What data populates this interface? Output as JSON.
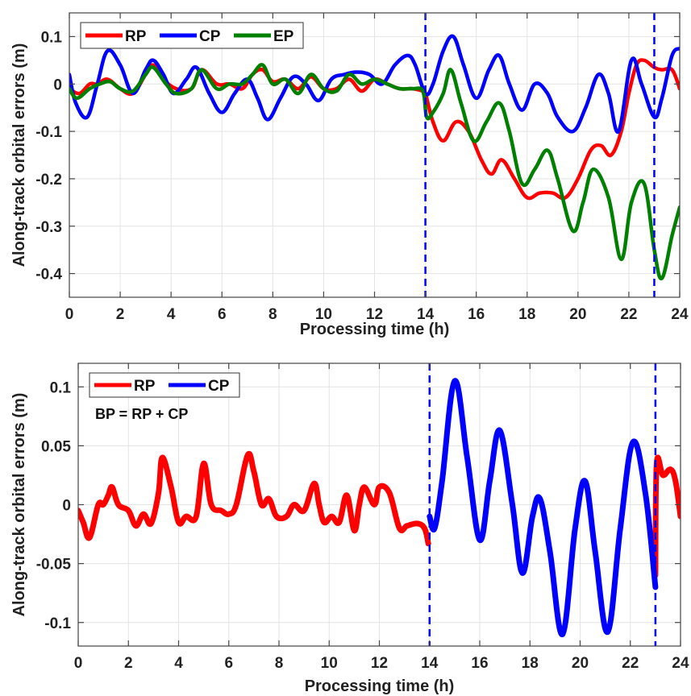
{
  "chart_data": [
    {
      "type": "line",
      "panel": "top",
      "title": "",
      "xlabel": "Processing time (h)",
      "ylabel": "Along-track orbital errors (m)",
      "xlim": [
        0,
        24
      ],
      "ylim": [
        -0.45,
        0.15
      ],
      "xticks": [
        0,
        2,
        4,
        6,
        8,
        10,
        12,
        14,
        16,
        18,
        20,
        22,
        24
      ],
      "xtick_labels": [
        "0",
        "2",
        "4",
        "6",
        "8",
        "10",
        "12",
        "14",
        "16",
        "18",
        "20",
        "22",
        "24"
      ],
      "yticks": [
        0.1,
        0,
        -0.1,
        -0.2,
        -0.3,
        -0.4
      ],
      "ytick_labels": [
        "0.1",
        "0",
        "-0.1",
        "-0.2",
        "-0.3",
        "-0.4"
      ],
      "grid": true,
      "legend": {
        "placement": "top-left",
        "entries": [
          "RP",
          "CP",
          "EP"
        ]
      },
      "vlines": [
        {
          "x": 14,
          "style": "dashed",
          "color": "#0000ff"
        },
        {
          "x": 23,
          "style": "dashed",
          "color": "#0000ff"
        }
      ],
      "series": [
        {
          "name": "RP",
          "color": "#ff0000",
          "x": [
            0,
            0.4,
            0.8,
            1.1,
            1.5,
            2.0,
            2.5,
            3.0,
            3.3,
            3.7,
            4.2,
            4.8,
            5.2,
            5.8,
            6.3,
            6.8,
            7.2,
            7.6,
            8.0,
            8.5,
            9.0,
            9.5,
            10.0,
            10.5,
            11.0,
            11.5,
            12.0,
            12.5,
            13.0,
            13.5,
            13.9,
            14.0,
            14.3,
            14.7,
            15.2,
            15.7,
            16.2,
            16.6,
            17.0,
            17.5,
            18.0,
            18.5,
            19.0,
            19.5,
            20.0,
            20.5,
            20.9,
            21.3,
            21.7,
            22.0,
            22.3,
            22.6,
            23.0,
            23.3,
            23.7,
            24.0
          ],
          "y": [
            -0.01,
            -0.02,
            0.0,
            0.0,
            0.01,
            -0.01,
            -0.02,
            0.02,
            0.04,
            0.01,
            -0.01,
            -0.01,
            0.03,
            0.0,
            0.0,
            -0.01,
            0.02,
            0.03,
            0.005,
            0.01,
            -0.01,
            0.015,
            -0.01,
            -0.01,
            0.01,
            -0.015,
            0.01,
            0.0,
            -0.01,
            -0.01,
            -0.015,
            -0.02,
            -0.08,
            -0.12,
            -0.08,
            -0.1,
            -0.16,
            -0.19,
            -0.16,
            -0.2,
            -0.24,
            -0.23,
            -0.23,
            -0.24,
            -0.2,
            -0.14,
            -0.13,
            -0.15,
            -0.1,
            -0.02,
            0.04,
            0.05,
            0.035,
            0.03,
            0.03,
            -0.01
          ]
        },
        {
          "name": "CP",
          "color": "#0000ff",
          "x": [
            0,
            0.25,
            0.7,
            1.1,
            1.5,
            2.0,
            2.5,
            3.0,
            3.3,
            3.7,
            4.1,
            4.6,
            5.0,
            5.5,
            6.0,
            6.5,
            7.0,
            7.4,
            7.8,
            8.3,
            8.8,
            9.3,
            9.8,
            10.3,
            10.8,
            11.3,
            11.8,
            12.3,
            12.8,
            13.3,
            13.6,
            14.0,
            14.3,
            14.7,
            15.1,
            15.5,
            16.0,
            16.5,
            16.9,
            17.3,
            17.8,
            18.3,
            18.8,
            19.2,
            19.8,
            20.3,
            20.8,
            21.2,
            21.6,
            22.1,
            22.5,
            23.0,
            23.3,
            23.7,
            24.0
          ],
          "y": [
            0.02,
            -0.04,
            -0.07,
            0.0,
            0.07,
            0.04,
            -0.02,
            0.03,
            0.05,
            0.02,
            -0.02,
            0.01,
            0.035,
            -0.02,
            -0.06,
            -0.02,
            0.01,
            -0.03,
            -0.075,
            -0.03,
            0.015,
            0.0,
            -0.035,
            0.01,
            0.02,
            0.025,
            0.02,
            0.0,
            0.04,
            0.06,
            0.04,
            -0.02,
            0.0,
            0.07,
            0.1,
            0.04,
            -0.03,
            0.03,
            0.06,
            0.0,
            -0.055,
            0.0,
            -0.02,
            -0.07,
            -0.1,
            -0.05,
            0.02,
            -0.02,
            -0.1,
            0.05,
            0.0,
            -0.07,
            -0.03,
            0.06,
            0.075
          ]
        },
        {
          "name": "EP",
          "color": "#008000",
          "x": [
            0,
            0.3,
            0.8,
            1.2,
            1.6,
            2.0,
            2.5,
            3.0,
            3.3,
            3.8,
            4.2,
            4.8,
            5.2,
            5.8,
            6.3,
            6.8,
            7.2,
            7.6,
            8.0,
            8.5,
            9.0,
            9.5,
            10.0,
            10.5,
            11.0,
            11.5,
            12.0,
            12.5,
            13.0,
            13.5,
            13.9,
            14.05,
            14.3,
            14.7,
            15.0,
            15.4,
            15.9,
            16.4,
            16.9,
            17.3,
            17.8,
            18.3,
            18.8,
            19.2,
            19.8,
            20.2,
            20.6,
            21.2,
            21.7,
            22.1,
            22.6,
            23.0,
            23.3,
            23.7,
            24.0
          ],
          "y": [
            -0.01,
            -0.03,
            -0.01,
            0.0,
            0.005,
            -0.01,
            -0.015,
            0.02,
            0.035,
            0.0,
            -0.02,
            -0.01,
            0.03,
            -0.01,
            0.0,
            0.0,
            0.02,
            0.04,
            0.0,
            0.01,
            -0.02,
            0.02,
            -0.01,
            -0.015,
            0.02,
            0.0,
            0.01,
            0.0,
            -0.01,
            -0.01,
            -0.015,
            -0.07,
            -0.06,
            -0.02,
            0.03,
            -0.04,
            -0.12,
            -0.08,
            -0.04,
            -0.1,
            -0.21,
            -0.18,
            -0.14,
            -0.2,
            -0.31,
            -0.25,
            -0.18,
            -0.24,
            -0.37,
            -0.25,
            -0.21,
            -0.35,
            -0.41,
            -0.32,
            -0.26
          ]
        }
      ]
    },
    {
      "type": "line",
      "panel": "bottom",
      "title": "",
      "xlabel": "Processing time (h)",
      "ylabel": "Along-track orbital errors (m)",
      "xlim": [
        0,
        24
      ],
      "ylim": [
        -0.12,
        0.12
      ],
      "xticks": [
        0,
        2,
        4,
        6,
        8,
        10,
        12,
        14,
        16,
        18,
        20,
        22,
        24
      ],
      "xtick_labels": [
        "0",
        "2",
        "4",
        "6",
        "8",
        "10",
        "12",
        "14",
        "16",
        "18",
        "20",
        "22",
        "24"
      ],
      "yticks": [
        0.1,
        0.05,
        0,
        -0.05,
        -0.1
      ],
      "ytick_labels": [
        "0.1",
        "0.05",
        "0",
        "-0.05",
        "-0.1"
      ],
      "grid": true,
      "legend": {
        "placement": "top-left",
        "entries": [
          "RP",
          "CP"
        ]
      },
      "annotations": [
        "BP = RP + CP"
      ],
      "vlines": [
        {
          "x": 14,
          "style": "dashed",
          "color": "#0000ff"
        },
        {
          "x": 23,
          "style": "dashed",
          "color": "#0000ff"
        }
      ],
      "series": [
        {
          "name": "RP",
          "color": "#ff0000",
          "segments": [
            {
              "x": [
                0,
                0.2,
                0.45,
                0.8,
                1.0,
                1.2,
                1.35,
                1.6,
                2.0,
                2.3,
                2.6,
                2.9,
                3.2,
                3.35,
                3.7,
                4.0,
                4.3,
                4.7,
                5.0,
                5.3,
                5.7,
                6.0,
                6.3,
                6.75,
                7.0,
                7.3,
                7.6,
                7.9,
                8.3,
                8.6,
                9.0,
                9.4,
                9.6,
                9.8,
                10.1,
                10.4,
                10.7,
                11.0,
                11.2,
                11.4,
                11.8,
                12.0,
                12.4,
                12.8,
                13.1,
                13.5,
                13.8,
                13.95
              ],
              "y": [
                -0.005,
                -0.015,
                -0.028,
                0.0,
                0.0,
                0.008,
                0.015,
                0.0,
                -0.005,
                -0.018,
                -0.008,
                -0.016,
                0.01,
                0.04,
                0.015,
                -0.015,
                -0.01,
                -0.01,
                0.035,
                0.0,
                -0.005,
                -0.008,
                0.0,
                0.042,
                0.028,
                0.0,
                0.005,
                -0.01,
                -0.01,
                0.0,
                -0.005,
                0.018,
                0.0,
                -0.015,
                -0.01,
                -0.015,
                0.008,
                -0.022,
                0.0,
                0.015,
                0.0,
                0.015,
                0.01,
                -0.02,
                -0.018,
                -0.016,
                -0.02,
                -0.033
              ]
            },
            {
              "x": [
                23.0,
                23.05,
                23.3,
                23.6,
                23.8,
                24.0
              ],
              "y": [
                -0.06,
                0.035,
                0.025,
                0.03,
                0.02,
                -0.01
              ]
            }
          ]
        },
        {
          "name": "CP",
          "color": "#0000ff",
          "x": [
            14.0,
            14.2,
            14.5,
            15.0,
            15.5,
            16.0,
            16.4,
            16.8,
            17.3,
            17.7,
            18.1,
            18.4,
            18.8,
            19.3,
            19.8,
            20.2,
            20.6,
            21.1,
            21.6,
            22.1,
            22.6,
            23.0
          ],
          "y": [
            -0.01,
            -0.02,
            0.02,
            0.105,
            0.04,
            -0.03,
            0.02,
            0.063,
            0.0,
            -0.058,
            -0.01,
            0.005,
            -0.04,
            -0.11,
            -0.02,
            0.02,
            -0.04,
            -0.108,
            -0.02,
            0.053,
            0.01,
            -0.07
          ]
        }
      ]
    }
  ]
}
